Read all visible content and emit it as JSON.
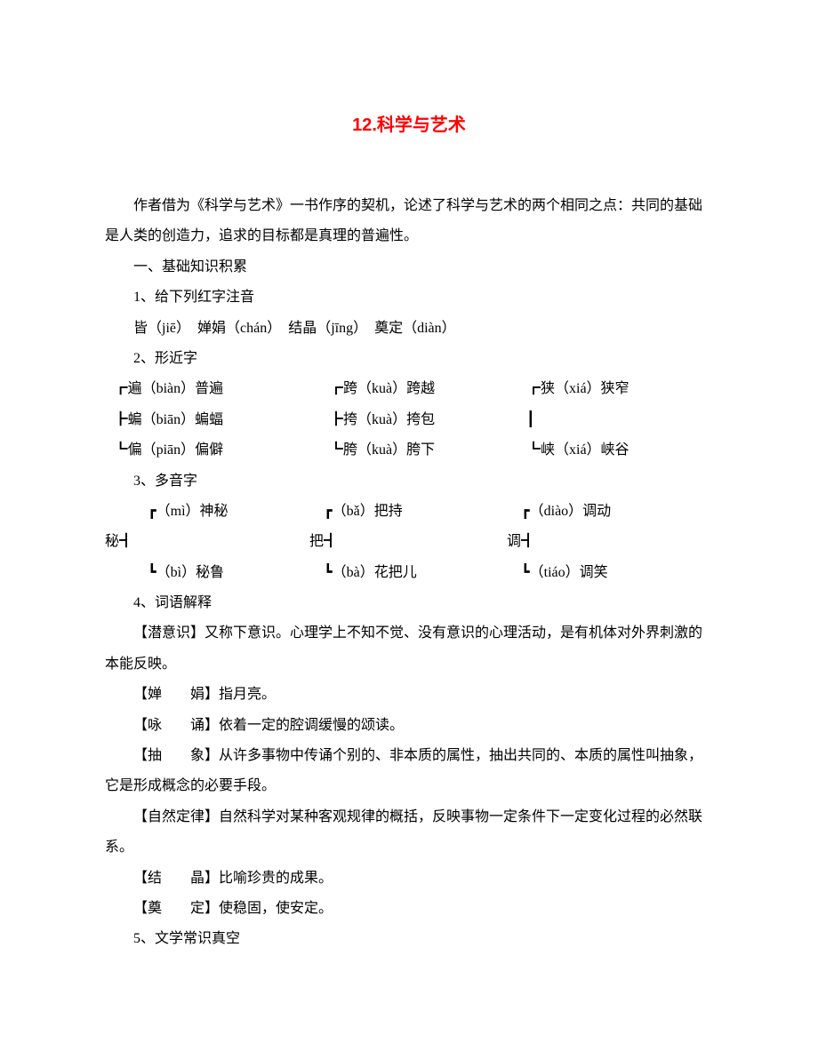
{
  "title": "12.科学与艺术",
  "intro": "作者借为《科学与艺术》一书作序的契机，论述了科学与艺术的两个相同之点：共同的基础是人类的创造力，追求的目标都是真理的普遍性。",
  "s1_heading": "一、基础知识积累",
  "s1_1_heading": "1、给下列红字注音",
  "s1_1_line": "皆（jiē）　婵娟（chán）　结晶（jīng）　奠定（diàn）",
  "s1_2_heading": "2、形近字",
  "near": {
    "r1c1": "┏遍（biàn）普遍",
    "r1c2": "┏跨（kuà）跨越",
    "r1c3": "┏狭（xiá）狭窄",
    "r2c1": "┣蝙（biān）蝙蝠",
    "r2c2": "┣挎（kuà）挎包",
    "r2c3": "┃",
    "r3c1": "┗偏（piān）偏僻",
    "r3c2": "┗胯（kuà）胯下",
    "r3c3": "┗峡（xiá）峡谷"
  },
  "s1_3_heading": "3、多音字",
  "poly": {
    "r1c1": "┏（mì）神秘",
    "r1c2": "┏（bǎ）把持",
    "r1c3": "┏（diào）调动",
    "rootA": "秘┫",
    "rootB": "把┫",
    "rootC": "调┫",
    "r3c1": "┗（bì）秘鲁",
    "r3c2": "┗（bà）花把儿",
    "r3c3": "┗（tiáo）调笑"
  },
  "s1_4_heading": "4、词语解释",
  "vocab": {
    "r1_pre": "【潜意识】",
    "r1_def": "又称下意识。心理学上不知不觉、没有意识的心理活动，是有机体对外界刺激的本能反映。",
    "r2_pre": "【婵　　娟】",
    "r2_def": "指月亮。",
    "r3_pre": "【咏　　诵】",
    "r3_def": "依着一定的腔调缓慢的颂读。",
    "r4_pre": "【抽　　象】",
    "r4_def": "从许多事物中传诵个别的、非本质的属性，抽出共同的、本质的属性叫抽象，它是形成概念的必要手段。",
    "r5_pre": "【自然定律】",
    "r5_def": "自然科学对某种客观规律的概括，反映事物一定条件下一定变化过程的必然联系。",
    "r6_pre": "【结　　晶】",
    "r6_def": "比喻珍贵的成果。",
    "r7_pre": "【奠　　定】",
    "r7_def": "使稳固，使安定。"
  },
  "s1_5_heading": "5、文学常识真空"
}
